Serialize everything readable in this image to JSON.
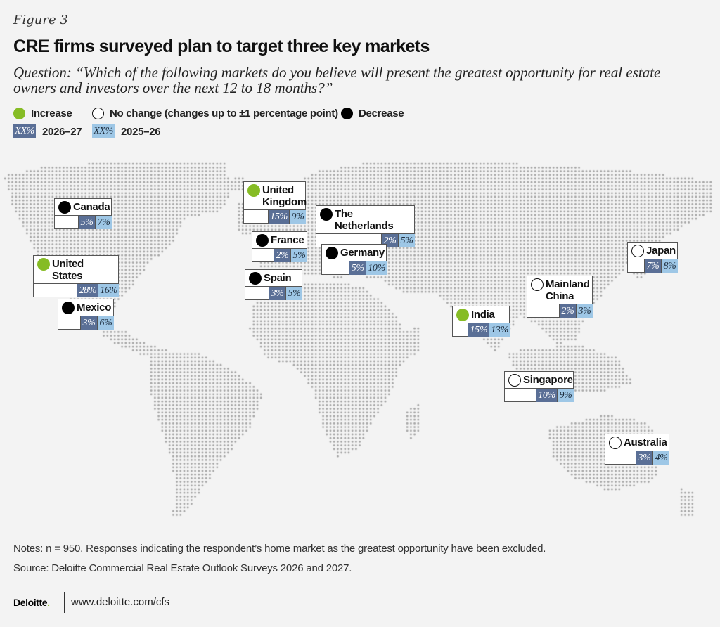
{
  "header": {
    "figure_label": "Figure 3",
    "title": "CRE firms surveyed plan to target three key markets",
    "question": "Question: “Which of the following markets do you believe will present the greatest opportunity for real estate owners and investors over the next 12 to 18 months?”"
  },
  "legend": {
    "status": [
      {
        "key": "increase",
        "label": "Increase",
        "color": "#86bc25"
      },
      {
        "key": "nochange",
        "label": "No change (changes up to ±1 percentage point)",
        "color": "#ffffff"
      },
      {
        "key": "decrease",
        "label": "Decrease",
        "color": "#000000"
      }
    ],
    "years": [
      {
        "swatch": "XX%",
        "label": "2026–27",
        "color": "#5a6f96"
      },
      {
        "swatch": "XX%",
        "label": "2025–26",
        "color": "#9ec7e6"
      }
    ]
  },
  "markets": [
    {
      "name": "Canada",
      "status": "decrease",
      "v2627": "5%",
      "v2526": "7%"
    },
    {
      "name": "United States",
      "status": "increase",
      "v2627": "28%",
      "v2526": "16%"
    },
    {
      "name": "Mexico",
      "status": "decrease",
      "v2627": "3%",
      "v2526": "6%"
    },
    {
      "name": "United Kingdom",
      "status": "increase",
      "v2627": "15%",
      "v2526": "9%"
    },
    {
      "name": "The Netherlands",
      "status": "decrease",
      "v2627": "2%",
      "v2526": "5%"
    },
    {
      "name": "France",
      "status": "decrease",
      "v2627": "2%",
      "v2526": "5%"
    },
    {
      "name": "Germany",
      "status": "decrease",
      "v2627": "5%",
      "v2526": "10%"
    },
    {
      "name": "Spain",
      "status": "decrease",
      "v2627": "3%",
      "v2526": "5%"
    },
    {
      "name": "Japan",
      "status": "nochange",
      "v2627": "7%",
      "v2526": "8%"
    },
    {
      "name": "Mainland China",
      "status": "nochange",
      "v2627": "2%",
      "v2526": "3%"
    },
    {
      "name": "India",
      "status": "increase",
      "v2627": "15%",
      "v2526": "13%"
    },
    {
      "name": "Singapore",
      "status": "nochange",
      "v2627": "10%",
      "v2526": "9%"
    },
    {
      "name": "Australia",
      "status": "nochange",
      "v2627": "3%",
      "v2526": "4%"
    }
  ],
  "footer": {
    "notes": "Notes: n = 950. Responses indicating the respondent’s home market as the greatest opportunity have been excluded.",
    "source": "Source: Deloitte Commercial Real Estate Outlook Surveys 2026 and 2027.",
    "logo_text": "Deloitte",
    "logo_dot": ".",
    "url": "www.deloitte.com/cfs"
  },
  "colors": {
    "increase": "#86bc25",
    "decrease": "#000000",
    "nochange": "#ffffff",
    "year_2026_27": "#5a6f96",
    "year_2025_26": "#9ec7e6",
    "map_dots": "#a4a4a4"
  }
}
